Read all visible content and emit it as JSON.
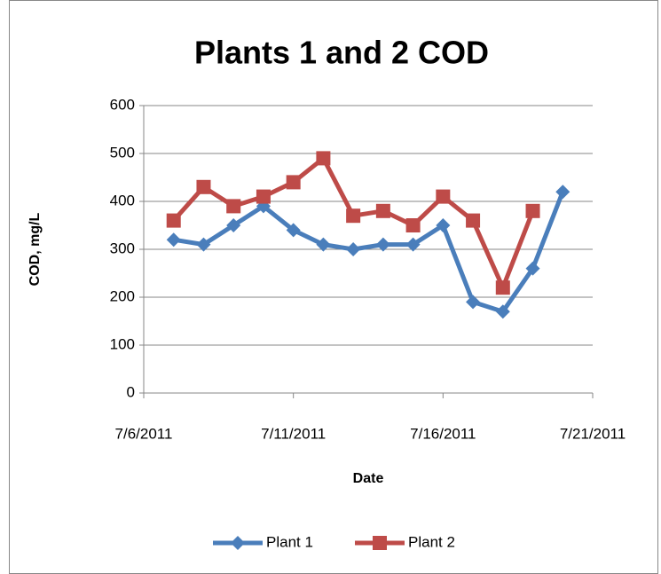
{
  "chart_data": {
    "type": "line",
    "title": "Plants 1 and 2 COD",
    "x_label": "Date",
    "y_label": "COD, mg/L",
    "x": [
      "7/7/2011",
      "7/8/2011",
      "7/9/2011",
      "7/10/2011",
      "7/11/2011",
      "7/12/2011",
      "7/13/2011",
      "7/14/2011",
      "7/15/2011",
      "7/16/2011",
      "7/17/2011",
      "7/18/2011",
      "7/19/2011",
      "7/20/2011"
    ],
    "series": [
      {
        "name": "Plant 1",
        "color": "#4a7ebb",
        "marker": "diamond",
        "values": [
          320,
          310,
          350,
          390,
          340,
          310,
          300,
          310,
          310,
          350,
          190,
          170,
          260,
          420
        ]
      },
      {
        "name": "Plant 2",
        "color": "#be4b48",
        "marker": "square",
        "values": [
          360,
          430,
          390,
          410,
          440,
          490,
          370,
          380,
          350,
          410,
          360,
          220,
          380,
          null
        ]
      }
    ],
    "xlim": [
      "7/6/2011",
      "7/21/2011"
    ],
    "xticks": [
      "7/6/2011",
      "7/11/2011",
      "7/16/2011",
      "7/21/2011"
    ],
    "ylim": [
      0,
      600
    ],
    "yticks": [
      0,
      100,
      200,
      300,
      400,
      500,
      600
    ],
    "grid": true,
    "legend": "bottom"
  }
}
